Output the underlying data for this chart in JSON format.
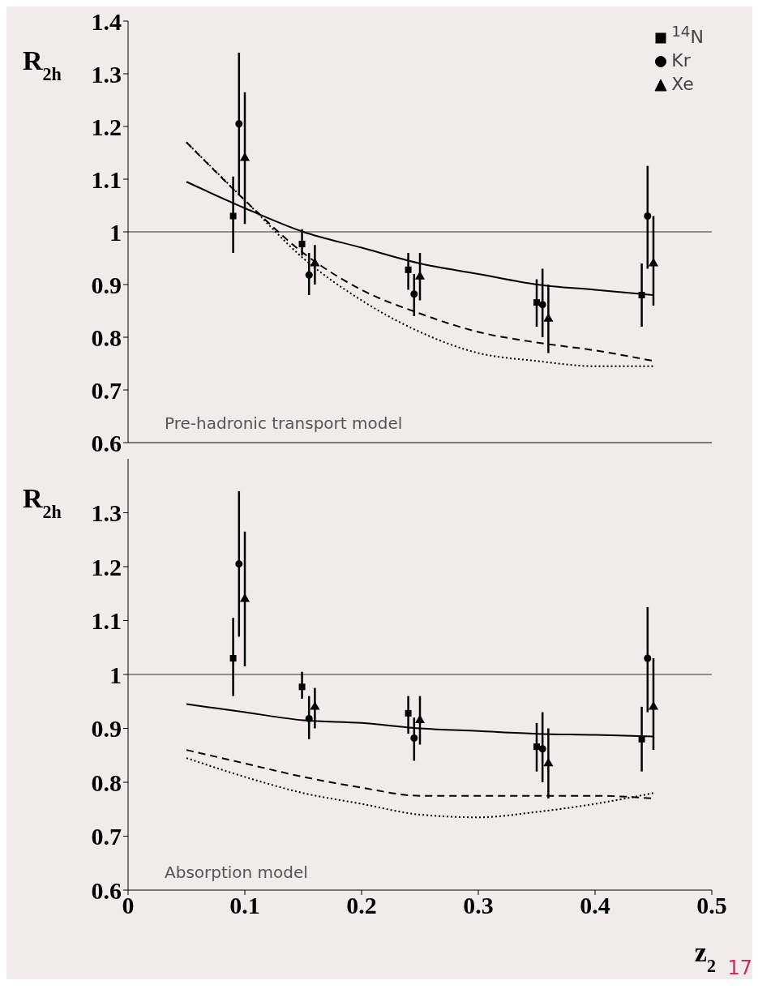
{
  "chart_data": [
    {
      "type": "scatter",
      "ylabel": "R$_{2h}$",
      "xlim": [
        0,
        0.5
      ],
      "xticks": [
        0,
        0.1,
        0.2,
        0.3,
        0.4,
        0.5
      ],
      "ylim": [
        0.6,
        1.4
      ],
      "yticks": [
        0.6,
        0.7,
        0.8,
        0.9,
        1,
        1.1,
        1.2,
        1.3,
        1.4
      ],
      "tick_labels": "y",
      "legend": "top right",
      "ref_lines": [
        {
          "axis": "y",
          "value": 1,
          "color": "#000000"
        }
      ],
      "annotations": [
        "Pre-hadronic transport model"
      ],
      "series": [
        {
          "name": "$^{14}$N",
          "marker": "square",
          "color": "#000000",
          "x": [
            0.09,
            0.149,
            0.24,
            0.35,
            0.44
          ],
          "values": [
            1.03,
            0.977,
            0.928,
            0.866,
            0.88
          ],
          "errors": [
            [
              0.96,
              1.105
            ],
            [
              0.955,
              1.005
            ],
            [
              0.89,
              0.96
            ],
            [
              0.82,
              0.91
            ],
            [
              0.82,
              0.94
            ]
          ]
        },
        {
          "name": "Kr",
          "marker": "circle",
          "color": "#000000",
          "x": [
            0.095,
            0.155,
            0.245,
            0.355,
            0.445
          ],
          "values": [
            1.205,
            0.918,
            0.882,
            0.862,
            1.03
          ],
          "errors": [
            [
              1.07,
              1.34
            ],
            [
              0.88,
              0.96
            ],
            [
              0.84,
              0.92
            ],
            [
              0.8,
              0.93
            ],
            [
              0.93,
              1.125
            ]
          ]
        },
        {
          "name": "Xe",
          "marker": "triangle",
          "color": "#000000",
          "x": [
            0.1,
            0.16,
            0.25,
            0.36,
            0.45
          ],
          "values": [
            1.14,
            0.94,
            0.915,
            0.835,
            0.94
          ],
          "errors": [
            [
              1.015,
              1.265
            ],
            [
              0.9,
              0.975
            ],
            [
              0.87,
              0.96
            ],
            [
              0.77,
              0.9
            ],
            [
              0.86,
              1.03
            ]
          ]
        },
        {
          "type": "line",
          "marker": "none",
          "line_style": "solid",
          "color": "#000000",
          "x": [
            0.05,
            0.1,
            0.15,
            0.2,
            0.25,
            0.3,
            0.35,
            0.4,
            0.45
          ],
          "values": [
            1.095,
            1.045,
            1.0,
            0.97,
            0.94,
            0.92,
            0.9,
            0.89,
            0.88
          ]
        },
        {
          "type": "line",
          "marker": "none",
          "line_style": "dashed",
          "color": "#000000",
          "x": [
            0.05,
            0.1,
            0.15,
            0.2,
            0.25,
            0.3,
            0.35,
            0.4,
            0.45
          ],
          "values": [
            1.17,
            1.06,
            0.96,
            0.89,
            0.845,
            0.81,
            0.79,
            0.775,
            0.755
          ]
        },
        {
          "type": "line",
          "marker": "none",
          "line_style": "dotted",
          "color": "#000000",
          "x": [
            0.05,
            0.1,
            0.15,
            0.2,
            0.25,
            0.3,
            0.35,
            0.4,
            0.45
          ],
          "values": [
            1.17,
            1.06,
            0.95,
            0.87,
            0.81,
            0.77,
            0.755,
            0.745,
            0.745
          ]
        }
      ]
    },
    {
      "type": "scatter",
      "ylabel": "R$_{2h}$",
      "xlabel": "z$_{2}$",
      "xlim": [
        0,
        0.5
      ],
      "xticks": [
        0,
        0.1,
        0.2,
        0.3,
        0.4,
        0.5
      ],
      "ylim": [
        0.6,
        1.4
      ],
      "yticks": [
        0.6,
        0.7,
        0.8,
        0.9,
        1,
        1.1,
        1.2,
        1.3
      ],
      "ref_lines": [
        {
          "axis": "y",
          "value": 1,
          "color": "#000000"
        }
      ],
      "annotations": [
        "Absorption model",
        "17"
      ],
      "series": [
        {
          "marker": "square",
          "color": "#000000",
          "x": [
            0.09,
            0.149,
            0.24,
            0.35,
            0.44
          ],
          "values": [
            1.03,
            0.977,
            0.928,
            0.866,
            0.88
          ],
          "errors": [
            [
              0.96,
              1.105
            ],
            [
              0.955,
              1.005
            ],
            [
              0.89,
              0.96
            ],
            [
              0.82,
              0.91
            ],
            [
              0.82,
              0.94
            ]
          ]
        },
        {
          "marker": "circle",
          "color": "#000000",
          "x": [
            0.095,
            0.155,
            0.245,
            0.355,
            0.445
          ],
          "values": [
            1.205,
            0.918,
            0.882,
            0.862,
            1.03
          ],
          "errors": [
            [
              1.07,
              1.34
            ],
            [
              0.88,
              0.96
            ],
            [
              0.84,
              0.92
            ],
            [
              0.8,
              0.93
            ],
            [
              0.93,
              1.125
            ]
          ]
        },
        {
          "marker": "triangle",
          "color": "#000000",
          "x": [
            0.1,
            0.16,
            0.25,
            0.36,
            0.45
          ],
          "values": [
            1.14,
            0.94,
            0.915,
            0.835,
            0.94
          ],
          "errors": [
            [
              1.015,
              1.265
            ],
            [
              0.9,
              0.975
            ],
            [
              0.87,
              0.96
            ],
            [
              0.77,
              0.9
            ],
            [
              0.86,
              1.03
            ]
          ]
        },
        {
          "type": "line",
          "marker": "none",
          "line_style": "solid",
          "color": "#000000",
          "x": [
            0.05,
            0.1,
            0.15,
            0.2,
            0.25,
            0.3,
            0.35,
            0.4,
            0.45
          ],
          "values": [
            0.945,
            0.93,
            0.915,
            0.91,
            0.9,
            0.895,
            0.89,
            0.888,
            0.885
          ]
        },
        {
          "type": "line",
          "marker": "none",
          "line_style": "dashed",
          "color": "#000000",
          "x": [
            0.05,
            0.1,
            0.15,
            0.2,
            0.25,
            0.3,
            0.35,
            0.4,
            0.45
          ],
          "values": [
            0.86,
            0.835,
            0.81,
            0.79,
            0.775,
            0.775,
            0.775,
            0.775,
            0.77
          ]
        },
        {
          "type": "line",
          "marker": "none",
          "line_style": "dotted",
          "color": "#000000",
          "x": [
            0.05,
            0.1,
            0.15,
            0.2,
            0.25,
            0.3,
            0.35,
            0.4,
            0.45
          ],
          "values": [
            0.845,
            0.81,
            0.78,
            0.76,
            0.74,
            0.735,
            0.745,
            0.76,
            0.78
          ]
        }
      ]
    }
  ]
}
